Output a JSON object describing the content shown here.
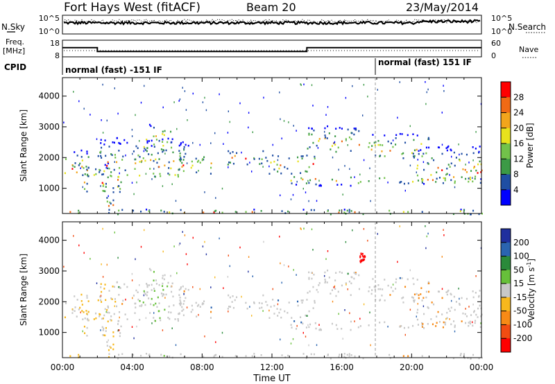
{
  "header": {
    "radar": "Fort Hays West (fitACF)",
    "beam": "Beam 20",
    "date": "23/May/2014"
  },
  "colors": {
    "power": [
      "#0000ff",
      "#1f4ea3",
      "#3c9a46",
      "#72c24a",
      "#e8e21c",
      "#f2a51c",
      "#f06a14",
      "#ff0000"
    ],
    "velocity": [
      "#1f2f9e",
      "#2a64b0",
      "#2a8a3a",
      "#67c03a",
      "#c8c8c8",
      "#f7b81d",
      "#f78a16",
      "#f24c12",
      "#ff0000"
    ]
  },
  "chart_data": [
    {
      "type": "line",
      "name": "noise",
      "ylabel_left": "N.Sky",
      "ylabel_right": "N.Search",
      "yticks_left": [
        "10^5",
        "10^0"
      ],
      "yticks_right": [
        "10^5",
        "10^0"
      ],
      "scale": "log"
    },
    {
      "type": "line",
      "name": "frequency",
      "ylabel_left": "Freq.",
      "yunit_left": "[MHz]",
      "ylabel_right": "Nave",
      "yticks_left": [
        "18",
        "8"
      ],
      "yticks_right": [
        "60",
        "0"
      ],
      "x": [
        "00:00",
        "02:00",
        "02:00",
        "14:00",
        "14:00",
        "24:00"
      ],
      "freq_mhz": [
        13.5,
        13.5,
        11.2,
        11.2,
        13.5,
        13.5
      ]
    },
    {
      "type": "table",
      "name": "cpid",
      "label": "CPID",
      "segments": [
        {
          "start": "00:00",
          "end": "18:00",
          "text": "normal (fast) -151 IF"
        },
        {
          "start": "18:00",
          "end": "24:00",
          "text": "normal (fast) 151 IF"
        }
      ]
    },
    {
      "type": "heatmap",
      "name": "power",
      "ylabel": "Slant Range [km]",
      "yticks": [
        1000,
        2000,
        3000,
        4000
      ],
      "ylim": [
        180,
        4600
      ],
      "colorbar_label": "Power [dB]",
      "colorbar_ticks": [
        4,
        8,
        12,
        16,
        20,
        24,
        28
      ],
      "xticks": [
        "00:00",
        "04:00",
        "08:00",
        "12:00",
        "16:00",
        "20:00",
        "00:00"
      ]
    },
    {
      "type": "heatmap",
      "name": "velocity",
      "ylabel": "Slant Range [km]",
      "yticks": [
        1000,
        2000,
        3000,
        4000
      ],
      "ylim": [
        180,
        4600
      ],
      "colorbar_label": "Velocity [m s",
      "colorbar_sup": "-1",
      "colorbar_ticks": [
        200,
        100,
        50,
        15,
        -15,
        -50,
        -100,
        -200
      ],
      "xticks": [
        "00:00",
        "04:00",
        "08:00",
        "12:00",
        "16:00",
        "20:00",
        "00:00"
      ],
      "xlabel": "Time UT"
    }
  ]
}
